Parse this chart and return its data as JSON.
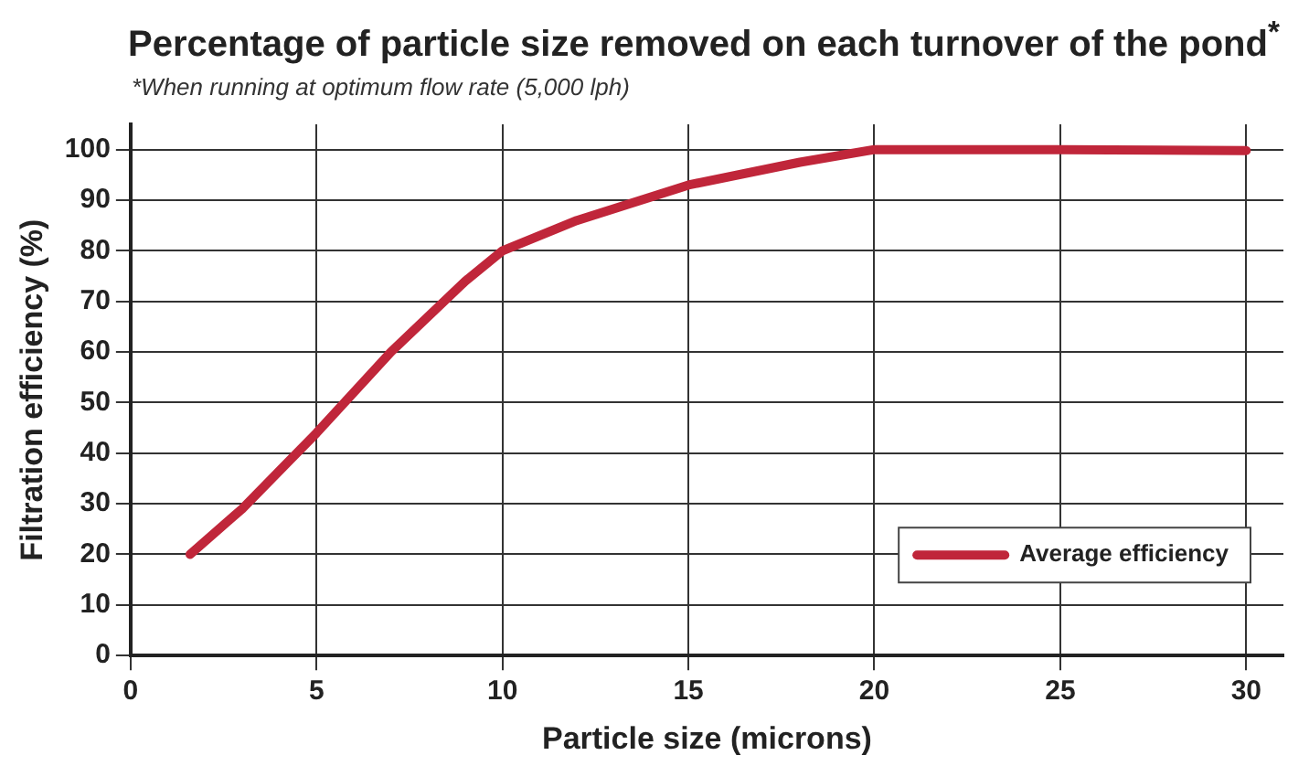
{
  "chart_data": {
    "type": "line",
    "title": "Percentage of particle size removed on each turnover of the pond$^{*}$",
    "subtitle": "*When running at optimum flow rate (5,000 lph)",
    "xlabel": "Particle size (microns)",
    "ylabel": "Filtration efficiency (%)",
    "x": [
      1.6,
      3,
      5,
      7,
      9,
      10,
      12,
      15,
      18,
      20,
      25,
      30
    ],
    "series": [
      {
        "name": "Average efficiency",
        "color": "#c0263a",
        "values": [
          20,
          29,
          44,
          60,
          74,
          80,
          86,
          93,
          97.5,
          100,
          100,
          99.8
        ]
      }
    ],
    "xlim": [
      0,
      31
    ],
    "xticks": [
      0,
      5,
      10,
      15,
      20,
      25,
      30
    ],
    "ylim": [
      0,
      105
    ],
    "yticks": [
      0,
      10,
      20,
      30,
      40,
      50,
      60,
      70,
      80,
      90,
      100
    ],
    "grid": true,
    "legend": "bottom right",
    "marker": "none",
    "line_style": "solid"
  }
}
